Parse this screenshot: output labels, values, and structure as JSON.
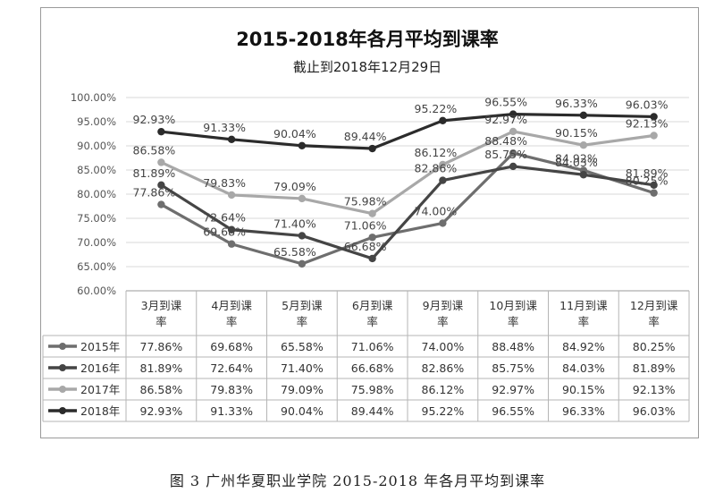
{
  "caption": "图 3   广州华夏职业学院 2015-2018 年各月平均到课率",
  "chart_data": {
    "type": "line",
    "title": "2015-2018年各月平均到课率",
    "subtitle": "截止到2018年12月29日",
    "categories": [
      "3月到课率",
      "4月到课率",
      "5月到课率",
      "6月到课率",
      "9月到课率",
      "10月到课率",
      "11月到课率",
      "12月到课率"
    ],
    "ylim": [
      60,
      100
    ],
    "y_ticks": [
      "60.00%",
      "65.00%",
      "70.00%",
      "75.00%",
      "80.00%",
      "85.00%",
      "90.00%",
      "95.00%",
      "100.00%"
    ],
    "grid": true,
    "legend": "data-table-below",
    "series": [
      {
        "name": "2015年",
        "color": "#6e6e6e",
        "values": [
          77.86,
          69.68,
          65.58,
          71.06,
          74.0,
          88.48,
          84.92,
          80.25
        ],
        "labels": [
          "77.86%",
          "69.68%",
          "65.58%",
          "71.06%",
          "74.00%",
          "88.48%",
          "84.92%",
          "80.25%"
        ]
      },
      {
        "name": "2016年",
        "color": "#454545",
        "values": [
          81.89,
          72.64,
          71.4,
          66.68,
          82.86,
          85.75,
          84.03,
          81.89
        ],
        "labels": [
          "81.89%",
          "72.64%",
          "71.40%",
          "66.68%",
          "82.86%",
          "85.75%",
          "84.03%",
          "81.89%"
        ]
      },
      {
        "name": "2017年",
        "color": "#a8a8a8",
        "values": [
          86.58,
          79.83,
          79.09,
          75.98,
          86.12,
          92.97,
          90.15,
          92.13
        ],
        "labels": [
          "86.58%",
          "79.83%",
          "79.09%",
          "75.98%",
          "86.12%",
          "92.97%",
          "90.15%",
          "92.13%"
        ]
      },
      {
        "name": "2018年",
        "color": "#2b2b2b",
        "values": [
          92.93,
          91.33,
          90.04,
          89.44,
          95.22,
          96.55,
          96.33,
          96.03
        ],
        "labels": [
          "92.93%",
          "91.33%",
          "90.04%",
          "89.44%",
          "95.22%",
          "96.55%",
          "96.33%",
          "96.03%"
        ]
      }
    ]
  }
}
